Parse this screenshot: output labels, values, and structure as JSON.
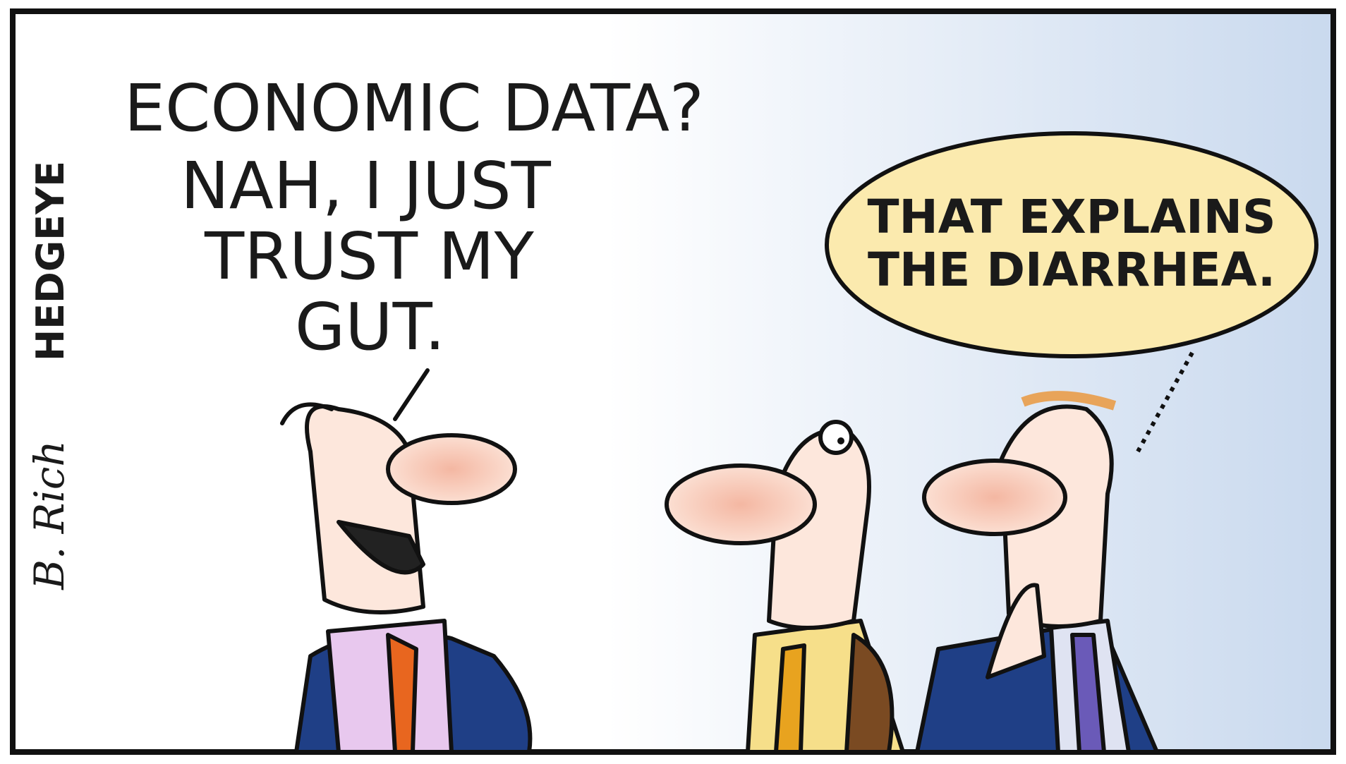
{
  "brand": "HEDGEYE",
  "signature": "B. Rich",
  "speech": [
    {
      "lines": [
        "ECONOMIC DATA?",
        "NAH, I JUST",
        "TRUST MY",
        "GUT."
      ]
    },
    {
      "lines": [
        "THAT EXPLAINS",
        "THE DIARRHEA."
      ]
    }
  ]
}
